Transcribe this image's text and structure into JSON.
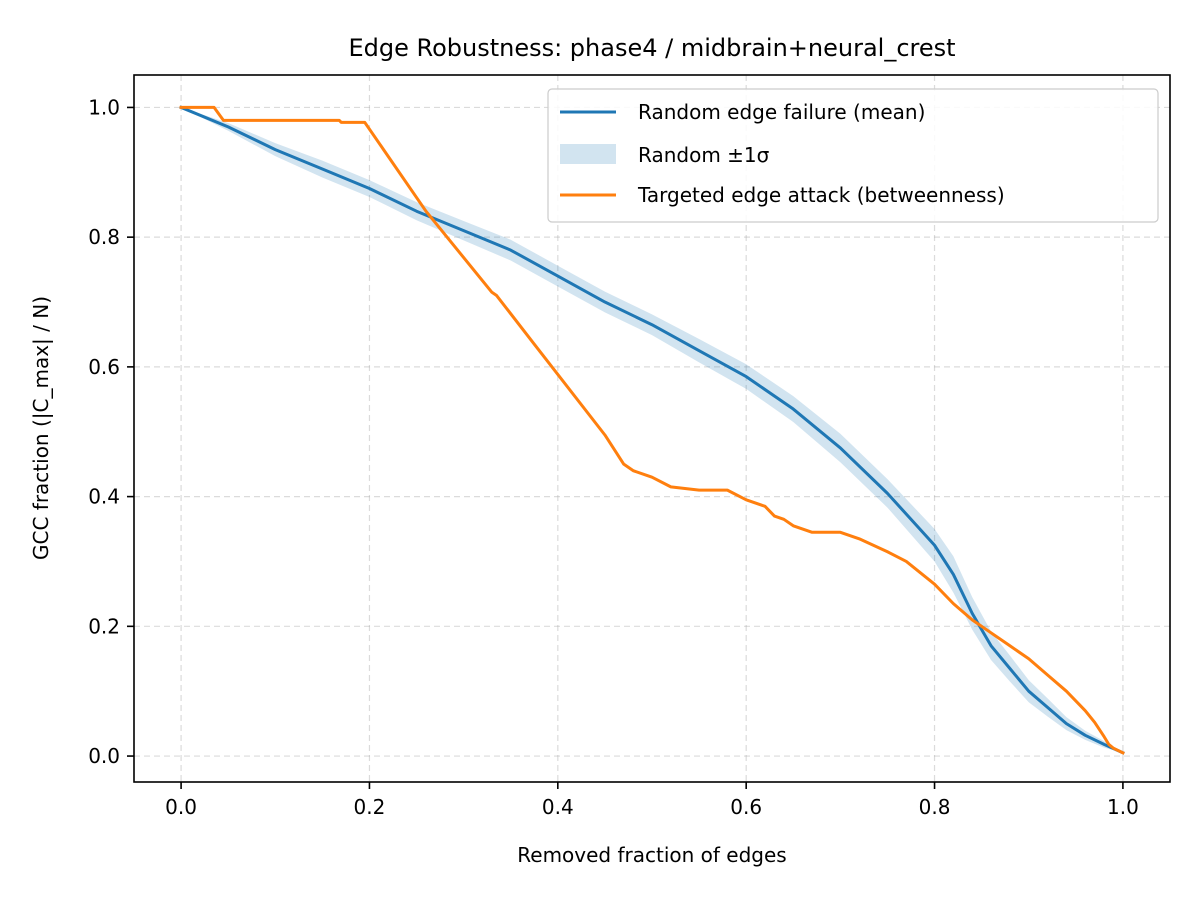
{
  "chart_data": {
    "type": "line",
    "title": "Edge Robustness: phase4 / midbrain+neural_crest",
    "xlabel": "Removed fraction of edges",
    "ylabel": "GCC fraction (|C_max| / N)",
    "xlim": [
      -0.05,
      1.05
    ],
    "ylim": [
      -0.04,
      1.05
    ],
    "xticks": [
      0.0,
      0.2,
      0.4,
      0.6,
      0.8,
      1.0
    ],
    "yticks": [
      0.0,
      0.2,
      0.4,
      0.6,
      0.8,
      1.0
    ],
    "xtick_labels": [
      "0.0",
      "0.2",
      "0.4",
      "0.6",
      "0.8",
      "1.0"
    ],
    "ytick_labels": [
      "0.0",
      "0.2",
      "0.4",
      "0.6",
      "0.8",
      "1.0"
    ],
    "grid": true,
    "legend_position": "top-right",
    "series": [
      {
        "name": "Random edge failure (mean)",
        "kind": "line",
        "color": "#1f77b4",
        "x": [
          0.0,
          0.05,
          0.1,
          0.15,
          0.2,
          0.25,
          0.3,
          0.35,
          0.4,
          0.45,
          0.5,
          0.55,
          0.6,
          0.65,
          0.7,
          0.75,
          0.8,
          0.82,
          0.84,
          0.86,
          0.88,
          0.9,
          0.92,
          0.94,
          0.96,
          0.98,
          1.0
        ],
        "y": [
          1.0,
          0.97,
          0.935,
          0.905,
          0.875,
          0.84,
          0.81,
          0.78,
          0.74,
          0.7,
          0.665,
          0.625,
          0.585,
          0.535,
          0.475,
          0.405,
          0.325,
          0.28,
          0.22,
          0.17,
          0.135,
          0.1,
          0.075,
          0.05,
          0.032,
          0.018,
          0.005
        ]
      },
      {
        "name": "Random ±1σ",
        "kind": "band",
        "color": "#1f77b4",
        "opacity": 0.2,
        "x": [
          0.0,
          0.05,
          0.1,
          0.15,
          0.2,
          0.25,
          0.3,
          0.35,
          0.4,
          0.45,
          0.5,
          0.55,
          0.6,
          0.65,
          0.7,
          0.75,
          0.8,
          0.82,
          0.84,
          0.86,
          0.88,
          0.9,
          0.92,
          0.94,
          0.96,
          0.98,
          1.0
        ],
        "lower": [
          1.0,
          0.964,
          0.925,
          0.892,
          0.862,
          0.826,
          0.795,
          0.764,
          0.724,
          0.684,
          0.649,
          0.607,
          0.566,
          0.515,
          0.453,
          0.383,
          0.3,
          0.252,
          0.195,
          0.148,
          0.115,
          0.083,
          0.061,
          0.04,
          0.025,
          0.013,
          0.005
        ],
        "upper": [
          1.0,
          0.976,
          0.945,
          0.918,
          0.888,
          0.854,
          0.825,
          0.796,
          0.756,
          0.716,
          0.681,
          0.643,
          0.604,
          0.555,
          0.497,
          0.427,
          0.35,
          0.308,
          0.245,
          0.192,
          0.155,
          0.117,
          0.089,
          0.06,
          0.039,
          0.023,
          0.005
        ]
      },
      {
        "name": "Targeted edge attack (betweenness)",
        "kind": "line",
        "color": "#ff7f0e",
        "x": [
          0.0,
          0.01,
          0.035,
          0.045,
          0.1,
          0.168,
          0.17,
          0.195,
          0.26,
          0.33,
          0.335,
          0.375,
          0.45,
          0.47,
          0.48,
          0.5,
          0.52,
          0.55,
          0.58,
          0.6,
          0.62,
          0.63,
          0.64,
          0.65,
          0.67,
          0.7,
          0.72,
          0.75,
          0.77,
          0.8,
          0.82,
          0.84,
          0.86,
          0.88,
          0.9,
          0.92,
          0.94,
          0.96,
          0.97,
          0.98,
          0.985,
          0.99,
          1.0
        ],
        "y": [
          1.0,
          1.0,
          1.0,
          0.98,
          0.98,
          0.98,
          0.977,
          0.977,
          0.84,
          0.715,
          0.71,
          0.635,
          0.495,
          0.45,
          0.44,
          0.43,
          0.415,
          0.41,
          0.41,
          0.395,
          0.385,
          0.37,
          0.365,
          0.355,
          0.345,
          0.345,
          0.335,
          0.315,
          0.3,
          0.265,
          0.235,
          0.21,
          0.19,
          0.17,
          0.15,
          0.125,
          0.1,
          0.07,
          0.052,
          0.03,
          0.018,
          0.012,
          0.005
        ]
      }
    ]
  }
}
